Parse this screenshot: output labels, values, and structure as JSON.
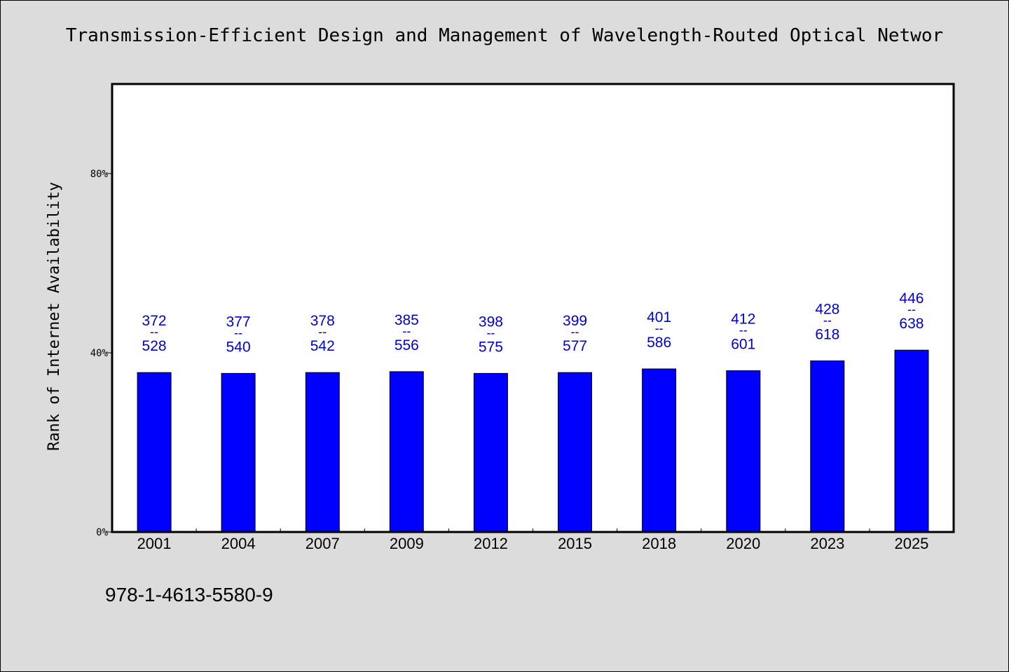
{
  "chart_data": {
    "type": "bar",
    "title": "Transmission-Efficient Design and Management of Wavelength-Routed Optical Networ",
    "xlabel": "",
    "ylabel": "Rank of Internet Availability",
    "ylim": [
      0,
      100
    ],
    "yticks": [
      {
        "value": 0,
        "label": "0%"
      },
      {
        "value": 40,
        "label": "40%"
      },
      {
        "value": 80,
        "label": "80%"
      }
    ],
    "categories": [
      "2001",
      "2004",
      "2007",
      "2009",
      "2012",
      "2015",
      "2018",
      "2020",
      "2023",
      "2025"
    ],
    "values": [
      35.6,
      35.4,
      35.6,
      35.8,
      35.4,
      35.6,
      36.4,
      36.0,
      38.2,
      40.6
    ],
    "data_labels": [
      {
        "top": "372",
        "sep": "--",
        "bottom": "528"
      },
      {
        "top": "377",
        "sep": "--",
        "bottom": "540"
      },
      {
        "top": "378",
        "sep": "--",
        "bottom": "542"
      },
      {
        "top": "385",
        "sep": "--",
        "bottom": "556"
      },
      {
        "top": "398",
        "sep": "--",
        "bottom": "575"
      },
      {
        "top": "399",
        "sep": "--",
        "bottom": "577"
      },
      {
        "top": "401",
        "sep": "--",
        "bottom": "586"
      },
      {
        "top": "412",
        "sep": "--",
        "bottom": "601"
      },
      {
        "top": "428",
        "sep": "--",
        "bottom": "618"
      },
      {
        "top": "446",
        "sep": "--",
        "bottom": "638"
      }
    ],
    "bar_color": "#0000ff",
    "label_color": "#0000cc",
    "grid": false
  },
  "footer": {
    "isbn": "978-1-4613-5580-9"
  }
}
